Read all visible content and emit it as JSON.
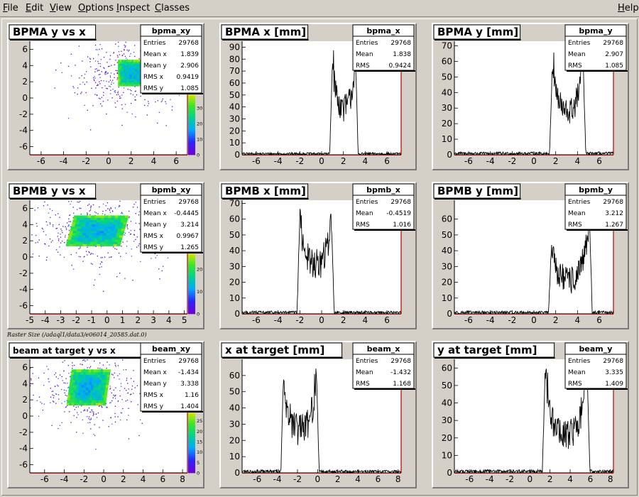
{
  "menu": [
    "File",
    "Edit",
    "View",
    "Options",
    "Inspect",
    "Classes"
  ],
  "help": "Help",
  "caption": "Raster Size (/adaql1/data3/e06014_20585.dat.0)",
  "colors": {
    "frame_axis": "#b00000",
    "hist_line": "#000000",
    "stats_bg": "#ffffff",
    "pad_bg": "#ffffff"
  },
  "chart_data": [
    {
      "type": "heatmap",
      "title": "BPMA y vs x",
      "stats_name": "bpma_xy",
      "stats": [
        [
          "Entries",
          "29768"
        ],
        [
          "Mean x",
          "1.839"
        ],
        [
          "Mean y",
          "2.906"
        ],
        [
          "RMS x",
          "0.9419"
        ],
        [
          "RMS y",
          "1.085"
        ]
      ],
      "xlim": [
        -7,
        7
      ],
      "ylim": [
        -7,
        7
      ],
      "xticks": [
        "-6",
        "-4",
        "-2",
        "0",
        "2",
        "4",
        "6"
      ],
      "xtick_vals": [
        -6,
        -4,
        -2,
        0,
        2,
        4,
        6
      ],
      "yticks": [
        "-6",
        "-4",
        "-2",
        "0",
        "2",
        "4",
        "6"
      ],
      "ytick_vals": [
        -6,
        -4,
        -2,
        0,
        2,
        4,
        6
      ],
      "core": {
        "x": [
          0.9,
          3.2
        ],
        "y": [
          1.6,
          4.6
        ]
      },
      "shear": 0.0,
      "halo": {
        "cx": 1.5,
        "cy": 3.0,
        "sx": 2.3,
        "sy": 2.3
      },
      "palette_ticks": [
        "0",
        "10",
        "20",
        "30"
      ],
      "palette_vals": [
        0,
        10,
        20,
        30
      ],
      "palette_max": 40
    },
    {
      "type": "bar",
      "title": "BPMA x [mm]",
      "stats_name": "bpma_x",
      "stats": [
        [
          "Entries",
          "29768"
        ],
        [
          "Mean",
          "1.838"
        ],
        [
          "RMS",
          "0.9424"
        ]
      ],
      "xlim": [
        -7.3,
        7.3
      ],
      "ylim": [
        0,
        95
      ],
      "xticks": [
        "-6",
        "-4",
        "-2",
        "0",
        "2",
        "4",
        "6"
      ],
      "xtick_vals": [
        -6,
        -4,
        -2,
        0,
        2,
        4,
        6
      ],
      "yticks": [
        "0",
        "10",
        "20",
        "30",
        "40",
        "50",
        "60",
        "70",
        "80",
        "90"
      ],
      "ytick_vals": [
        0,
        10,
        20,
        30,
        40,
        50,
        60,
        70,
        80,
        90
      ],
      "edges": [
        0.9,
        3.2
      ],
      "peaks": [
        88,
        92
      ],
      "trough": 38,
      "noise": 12,
      "baseline": 1
    },
    {
      "type": "bar",
      "title": "BPMA y [mm]",
      "stats_name": "bpma_y",
      "stats": [
        [
          "Entries",
          "29768"
        ],
        [
          "Mean",
          "2.907"
        ],
        [
          "RMS",
          "1.085"
        ]
      ],
      "xlim": [
        -7.3,
        7.3
      ],
      "ylim": [
        0,
        73
      ],
      "xticks": [
        "-6",
        "-4",
        "-2",
        "0",
        "2",
        "4",
        "6"
      ],
      "xtick_vals": [
        -6,
        -4,
        -2,
        0,
        2,
        4,
        6
      ],
      "yticks": [
        "0",
        "10",
        "20",
        "30",
        "40",
        "50",
        "60",
        "70"
      ],
      "ytick_vals": [
        0,
        10,
        20,
        30,
        40,
        50,
        60,
        70
      ],
      "edges": [
        1.6,
        4.6
      ],
      "peaks": [
        66,
        70
      ],
      "trough": 26,
      "noise": 9,
      "baseline": 1
    },
    {
      "type": "heatmap",
      "title": "BPMB y vs x",
      "stats_name": "bpmb_xy",
      "stats": [
        [
          "Entries",
          "29768"
        ],
        [
          "Mean x",
          "-0.4445"
        ],
        [
          "Mean y",
          "3.214"
        ],
        [
          "RMS x",
          "0.9967"
        ],
        [
          "RMS y",
          "1.265"
        ]
      ],
      "xlim": [
        -5,
        5.2
      ],
      "ylim": [
        -7,
        7
      ],
      "xticks": [
        "-5",
        "-4",
        "-3",
        "-2",
        "-1",
        "0",
        "1",
        "2",
        "3",
        "4",
        "5"
      ],
      "xtick_vals": [
        -5,
        -4,
        -3,
        -2,
        -1,
        0,
        1,
        2,
        3,
        4,
        5
      ],
      "yticks": [
        "-6",
        "-4",
        "-2",
        "0",
        "2",
        "4",
        "6"
      ],
      "ytick_vals": [
        -6,
        -4,
        -2,
        0,
        2,
        4,
        6
      ],
      "core": {
        "x": [
          -2.3,
          1.0
        ],
        "y": [
          1.5,
          5.0
        ]
      },
      "shear": 0.15,
      "halo": {
        "cx": -0.5,
        "cy": 3.2,
        "sx": 2.2,
        "sy": 2.2
      },
      "palette_ticks": [
        "0",
        "10",
        "20"
      ],
      "palette_vals": [
        0,
        10,
        20
      ],
      "palette_max": 28
    },
    {
      "type": "bar",
      "title": "BPMB x [mm]",
      "stats_name": "bpmb_x",
      "stats": [
        [
          "Entries",
          "29768"
        ],
        [
          "Mean",
          "-0.4519"
        ],
        [
          "RMS",
          "1.016"
        ]
      ],
      "xlim": [
        -7.3,
        7.3
      ],
      "ylim": [
        0,
        72
      ],
      "xticks": [
        "-6",
        "-4",
        "-2",
        "0",
        "2",
        "4",
        "6"
      ],
      "xtick_vals": [
        -6,
        -4,
        -2,
        0,
        2,
        4,
        6
      ],
      "yticks": [
        "0",
        "10",
        "20",
        "30",
        "40",
        "50",
        "60",
        "70"
      ],
      "ytick_vals": [
        0,
        10,
        20,
        30,
        40,
        50,
        60,
        70
      ],
      "edges": [
        -2.1,
        1.0
      ],
      "peaks": [
        66,
        64
      ],
      "trough": 30,
      "noise": 10,
      "baseline": 1
    },
    {
      "type": "bar",
      "title": "BPMB y [mm]",
      "stats_name": "bpmb_y",
      "stats": [
        [
          "Entries",
          "29768"
        ],
        [
          "Mean",
          "3.212"
        ],
        [
          "RMS",
          "1.267"
        ]
      ],
      "xlim": [
        -7.3,
        7.3
      ],
      "ylim": [
        0,
        72
      ],
      "xticks": [
        "-6",
        "-4",
        "-2",
        "0",
        "2",
        "4",
        "6"
      ],
      "xtick_vals": [
        -6,
        -4,
        -2,
        0,
        2,
        4,
        6
      ],
      "yticks": [
        "0",
        "10",
        "20",
        "30",
        "40",
        "50",
        "60"
      ],
      "ytick_vals": [
        0,
        10,
        20,
        30,
        40,
        50,
        60
      ],
      "edges": [
        1.5,
        5.2
      ],
      "peaks": [
        44,
        66
      ],
      "trough": 20,
      "noise": 9,
      "baseline": 1
    },
    {
      "type": "heatmap",
      "title": "beam at target y vs x",
      "stats_name": "beam_xy",
      "stats": [
        [
          "Entries",
          "29768"
        ],
        [
          "Mean x",
          "-1.434"
        ],
        [
          "Mean y",
          "3.338"
        ],
        [
          "RMS x",
          "1.16"
        ],
        [
          "RMS y",
          "1.404"
        ]
      ],
      "xlim": [
        -7.5,
        8.5
      ],
      "ylim": [
        -7,
        7
      ],
      "xticks": [
        "-6",
        "-4",
        "-2",
        "0",
        "2",
        "4",
        "6",
        "8"
      ],
      "xtick_vals": [
        -6,
        -4,
        -2,
        0,
        2,
        4,
        6,
        8
      ],
      "yticks": [
        "-6",
        "-4",
        "-2",
        "0",
        "2",
        "4",
        "6"
      ],
      "ytick_vals": [
        -6,
        -4,
        -2,
        0,
        2,
        4,
        6
      ],
      "core": {
        "x": [
          -3.4,
          0.3
        ],
        "y": [
          1.5,
          5.6
        ]
      },
      "shear": 0.12,
      "halo": {
        "cx": -1.4,
        "cy": 3.3,
        "sx": 2.6,
        "sy": 2.6
      },
      "palette_ticks": [
        "0",
        "5",
        "10",
        "15",
        "20",
        "25"
      ],
      "palette_vals": [
        0,
        5,
        10,
        15,
        20,
        25
      ],
      "palette_max": 30
    },
    {
      "type": "bar",
      "title": "x at target [mm]",
      "stats_name": "beam_x",
      "stats": [
        [
          "Entries",
          "29768"
        ],
        [
          "Mean",
          "-1.432"
        ],
        [
          "RMS",
          "1.168"
        ]
      ],
      "xlim": [
        -7.5,
        8.3
      ],
      "ylim": [
        0,
        70
      ],
      "xticks": [
        "-6",
        "-4",
        "-2",
        "0",
        "2",
        "4",
        "6",
        "8"
      ],
      "xtick_vals": [
        -6,
        -4,
        -2,
        0,
        2,
        4,
        6,
        8
      ],
      "yticks": [
        "0",
        "10",
        "20",
        "30",
        "40",
        "50",
        "60"
      ],
      "ytick_vals": [
        0,
        10,
        20,
        30,
        40,
        50,
        60
      ],
      "edges": [
        -3.5,
        0.0
      ],
      "peaks": [
        62,
        65
      ],
      "trough": 25,
      "noise": 10,
      "baseline": 1
    },
    {
      "type": "bar",
      "title": "y at target [mm]",
      "stats_name": "beam_y",
      "stats": [
        [
          "Entries",
          "29768"
        ],
        [
          "Mean",
          "3.335"
        ],
        [
          "RMS",
          "1.409"
        ]
      ],
      "xlim": [
        -7.5,
        8.3
      ],
      "ylim": [
        0,
        65
      ],
      "xticks": [
        "-6",
        "-4",
        "-2",
        "0",
        "2",
        "4",
        "6",
        "8"
      ],
      "xtick_vals": [
        -6,
        -4,
        -2,
        0,
        2,
        4,
        6,
        8
      ],
      "yticks": [
        "0",
        "10",
        "20",
        "30",
        "40",
        "50",
        "60"
      ],
      "ytick_vals": [
        0,
        10,
        20,
        30,
        40,
        50,
        60
      ],
      "edges": [
        1.4,
        5.8
      ],
      "peaks": [
        60,
        62
      ],
      "trough": 20,
      "noise": 9,
      "baseline": 1
    }
  ]
}
